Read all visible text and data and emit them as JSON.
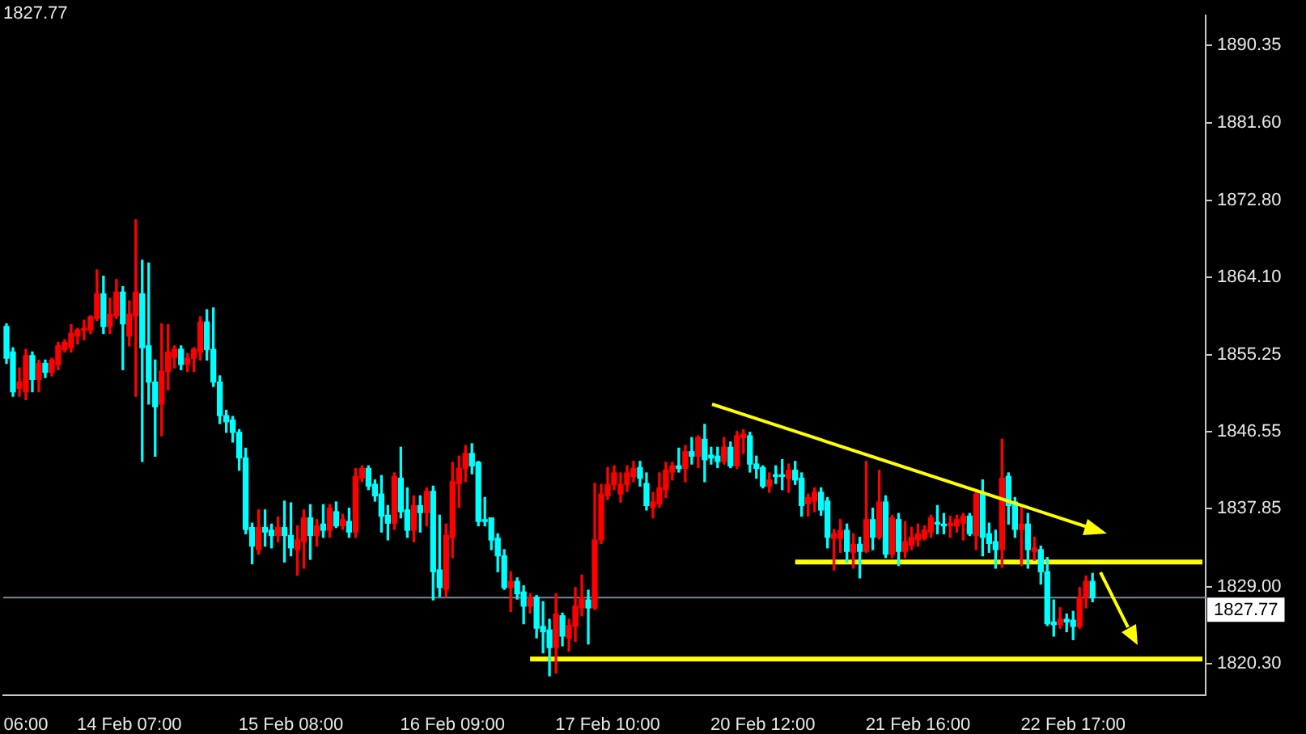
{
  "chart_data": {
    "type": "candlestick",
    "categories": [
      null,
      null,
      null,
      "06:00",
      null,
      null,
      null,
      null,
      null,
      null,
      null,
      null,
      null,
      null,
      null,
      null,
      null,
      null,
      null,
      "14 Feb 07:00",
      null,
      null,
      null,
      null,
      null,
      null,
      null,
      null,
      null,
      null,
      null,
      null,
      null,
      null,
      null,
      null,
      null,
      null,
      null,
      null,
      null,
      null,
      null,
      null,
      "15 Feb 08:00",
      null,
      null,
      null,
      null,
      null,
      null,
      null,
      null,
      null,
      null,
      null,
      null,
      null,
      null,
      null,
      null,
      null,
      null,
      null,
      null,
      null,
      null,
      null,
      null,
      "16 Feb 09:00",
      null,
      null,
      null,
      null,
      null,
      null,
      null,
      null,
      null,
      null,
      null,
      null,
      null,
      null,
      null,
      null,
      null,
      null,
      null,
      null,
      null,
      null,
      null,
      "17 Feb 10:00",
      null,
      null,
      null,
      null,
      null,
      null,
      null,
      null,
      null,
      null,
      null,
      null,
      null,
      null,
      null,
      null,
      null,
      null,
      null,
      null,
      null,
      null,
      null,
      "20 Feb 12:00",
      null,
      null,
      null,
      null,
      null,
      null,
      null,
      null,
      null,
      null,
      null,
      null,
      null,
      null,
      null,
      null,
      null,
      null,
      null,
      null,
      null,
      null,
      null,
      "21 Feb 16:00",
      null,
      null,
      null,
      null,
      null,
      null,
      null,
      null,
      null,
      null,
      null,
      null,
      null,
      null,
      null,
      null,
      null,
      null,
      null,
      null,
      null,
      null,
      null,
      "22 Feb 17:00",
      null,
      null,
      null,
      null,
      null,
      null,
      null,
      null,
      null,
      null,
      null,
      null,
      null,
      null,
      null,
      null,
      null,
      null,
      null,
      null
    ],
    "ohlc": [
      [
        1858.5,
        1858.8,
        1854.3,
        1854.9
      ],
      [
        1855.6,
        1856.1,
        1850.6,
        1851.1
      ],
      [
        1851.5,
        1853.8,
        1850.6,
        1852.2
      ],
      [
        1851.1,
        1855.9,
        1850.2,
        1855.2
      ],
      [
        1855.2,
        1855.6,
        1851.1,
        1852.5
      ],
      [
        1852.5,
        1854.7,
        1851.1,
        1854.3
      ],
      [
        1854.3,
        1854.7,
        1852.7,
        1853.3
      ],
      [
        1853.3,
        1854.9,
        1852.9,
        1854.7
      ],
      [
        1854.2,
        1856.7,
        1853.6,
        1856.3
      ],
      [
        1855.9,
        1857.0,
        1855.6,
        1856.7
      ],
      [
        1856.1,
        1858.7,
        1855.6,
        1857.7
      ],
      [
        1857.4,
        1858.3,
        1856.5,
        1858.1
      ],
      [
        1858.1,
        1859.2,
        1857.0,
        1858.3
      ],
      [
        1858.1,
        1859.7,
        1857.7,
        1859.6
      ],
      [
        1859.4,
        1864.9,
        1859.2,
        1862.2
      ],
      [
        1862.2,
        1864.2,
        1857.7,
        1858.5
      ],
      [
        1858.5,
        1861.7,
        1857.7,
        1859.9
      ],
      [
        1859.7,
        1863.8,
        1859.4,
        1862.4
      ],
      [
        1862.4,
        1863.0,
        1853.6,
        1858.8
      ],
      [
        1857.4,
        1861.4,
        1856.3,
        1859.9
      ],
      [
        1859.7,
        1870.6,
        1850.6,
        1862.4
      ],
      [
        1862.2,
        1866.0,
        1843.2,
        1856.1
      ],
      [
        1856.3,
        1865.7,
        1849.7,
        1852.2
      ],
      [
        1852.2,
        1854.7,
        1843.8,
        1849.4
      ],
      [
        1849.7,
        1858.8,
        1846.1,
        1853.4
      ],
      [
        1853.4,
        1858.7,
        1851.3,
        1855.6
      ],
      [
        1855.0,
        1856.3,
        1853.8,
        1855.9
      ],
      [
        1855.9,
        1856.3,
        1853.6,
        1854.2
      ],
      [
        1854.2,
        1855.4,
        1853.4,
        1854.9
      ],
      [
        1854.9,
        1856.1,
        1853.4,
        1855.9
      ],
      [
        1855.6,
        1859.6,
        1854.7,
        1859.0
      ],
      [
        1859.0,
        1860.4,
        1854.7,
        1855.9
      ],
      [
        1855.9,
        1860.6,
        1851.7,
        1852.2
      ],
      [
        1852.2,
        1852.9,
        1847.5,
        1848.4
      ],
      [
        1848.4,
        1849.0,
        1846.5,
        1847.7
      ],
      [
        1847.9,
        1848.3,
        1845.4,
        1846.5
      ],
      [
        1846.5,
        1846.8,
        1842.2,
        1843.6
      ],
      [
        1843.6,
        1844.7,
        1835.0,
        1835.5
      ],
      [
        1835.7,
        1836.2,
        1831.6,
        1833.6
      ],
      [
        1833.2,
        1837.7,
        1832.7,
        1835.7
      ],
      [
        1835.7,
        1837.7,
        1833.6,
        1835.2
      ],
      [
        1835.4,
        1836.1,
        1833.4,
        1834.8
      ],
      [
        1834.8,
        1836.9,
        1834.1,
        1835.7
      ],
      [
        1835.7,
        1838.7,
        1831.8,
        1834.8
      ],
      [
        1834.8,
        1838.5,
        1832.5,
        1833.4
      ],
      [
        1833.2,
        1835.9,
        1830.3,
        1834.3
      ],
      [
        1834.1,
        1837.7,
        1831.1,
        1836.8
      ],
      [
        1836.8,
        1838.3,
        1832.1,
        1834.8
      ],
      [
        1834.8,
        1836.6,
        1833.6,
        1835.9
      ],
      [
        1836.1,
        1838.3,
        1834.6,
        1835.4
      ],
      [
        1835.4,
        1838.3,
        1834.6,
        1837.9
      ],
      [
        1837.5,
        1838.6,
        1835.7,
        1835.9
      ],
      [
        1835.9,
        1837.2,
        1835.5,
        1836.6
      ],
      [
        1836.4,
        1837.9,
        1834.6,
        1835.2
      ],
      [
        1835.2,
        1842.4,
        1834.6,
        1841.5
      ],
      [
        1841.3,
        1842.7,
        1840.9,
        1842.4
      ],
      [
        1842.4,
        1842.7,
        1840.0,
        1840.4
      ],
      [
        1840.6,
        1841.1,
        1838.7,
        1839.3
      ],
      [
        1839.5,
        1841.6,
        1835.2,
        1837.0
      ],
      [
        1837.1,
        1838.2,
        1834.3,
        1836.2
      ],
      [
        1836.2,
        1841.9,
        1835.5,
        1841.5
      ],
      [
        1841.3,
        1844.8,
        1836.8,
        1837.5
      ],
      [
        1837.7,
        1840.2,
        1834.6,
        1835.4
      ],
      [
        1835.4,
        1839.3,
        1834.1,
        1838.2
      ],
      [
        1838.2,
        1839.3,
        1835.2,
        1837.4
      ],
      [
        1837.4,
        1840.2,
        1835.9,
        1839.8
      ],
      [
        1839.8,
        1840.4,
        1827.5,
        1830.7
      ],
      [
        1830.9,
        1837.1,
        1827.9,
        1828.9
      ],
      [
        1828.7,
        1836.1,
        1827.9,
        1834.8
      ],
      [
        1834.6,
        1843.1,
        1832.3,
        1840.9
      ],
      [
        1840.7,
        1843.8,
        1838.0,
        1842.4
      ],
      [
        1842.4,
        1845.0,
        1840.9,
        1844.1
      ],
      [
        1844.1,
        1845.2,
        1841.8,
        1842.7
      ],
      [
        1843.1,
        1843.2,
        1835.9,
        1836.4
      ],
      [
        1836.6,
        1839.1,
        1835.9,
        1836.4
      ],
      [
        1836.8,
        1836.8,
        1833.2,
        1834.3
      ],
      [
        1834.5,
        1835.0,
        1830.7,
        1832.5
      ],
      [
        1832.5,
        1833.2,
        1828.7,
        1828.9
      ],
      [
        1828.9,
        1830.7,
        1826.2,
        1829.6
      ],
      [
        1829.6,
        1830.0,
        1827.6,
        1828.2
      ],
      [
        1828.4,
        1829.1,
        1824.8,
        1826.8
      ],
      [
        1826.8,
        1828.2,
        1826.0,
        1827.8
      ],
      [
        1827.8,
        1828.0,
        1823.2,
        1824.3
      ],
      [
        1824.5,
        1827.3,
        1821.5,
        1823.9
      ],
      [
        1824.1,
        1825.3,
        1818.9,
        1822.1
      ],
      [
        1822.1,
        1828.2,
        1819.2,
        1825.9
      ],
      [
        1825.7,
        1826.0,
        1822.3,
        1823.4
      ],
      [
        1823.2,
        1825.3,
        1821.7,
        1824.6
      ],
      [
        1824.5,
        1828.9,
        1822.8,
        1826.8
      ],
      [
        1826.6,
        1830.3,
        1825.7,
        1827.8
      ],
      [
        1827.5,
        1828.6,
        1822.5,
        1826.6
      ],
      [
        1826.6,
        1840.7,
        1826.4,
        1834.3
      ],
      [
        1834.3,
        1840.6,
        1833.9,
        1839.5
      ],
      [
        1839.3,
        1842.5,
        1838.9,
        1840.6
      ],
      [
        1840.6,
        1842.7,
        1840.0,
        1841.9
      ],
      [
        1839.5,
        1841.9,
        1838.6,
        1840.6
      ],
      [
        1840.6,
        1842.7,
        1839.8,
        1841.9
      ],
      [
        1841.5,
        1843.2,
        1840.9,
        1842.4
      ],
      [
        1842.5,
        1843.2,
        1840.4,
        1841.3
      ],
      [
        1840.7,
        1841.9,
        1837.7,
        1838.2
      ],
      [
        1838.0,
        1839.7,
        1836.8,
        1838.6
      ],
      [
        1838.4,
        1841.9,
        1838.0,
        1840.2
      ],
      [
        1840.0,
        1843.1,
        1839.1,
        1842.2
      ],
      [
        1842.0,
        1843.1,
        1841.1,
        1842.7
      ],
      [
        1842.7,
        1844.7,
        1842.0,
        1842.4
      ],
      [
        1842.4,
        1845.0,
        1840.9,
        1844.3
      ],
      [
        1844.3,
        1845.9,
        1842.9,
        1843.8
      ],
      [
        1843.8,
        1846.1,
        1842.5,
        1845.9
      ],
      [
        1845.7,
        1847.4,
        1840.9,
        1843.4
      ],
      [
        1843.9,
        1844.8,
        1842.9,
        1843.6
      ],
      [
        1843.8,
        1844.8,
        1842.5,
        1843.2
      ],
      [
        1843.2,
        1845.9,
        1842.9,
        1844.8
      ],
      [
        1844.8,
        1845.4,
        1842.5,
        1842.7
      ],
      [
        1842.7,
        1846.6,
        1842.4,
        1846.1
      ],
      [
        1845.9,
        1846.8,
        1844.1,
        1846.3
      ],
      [
        1846.1,
        1846.5,
        1842.0,
        1842.9
      ],
      [
        1842.9,
        1843.8,
        1841.3,
        1842.4
      ],
      [
        1842.5,
        1842.7,
        1840.2,
        1840.4
      ],
      [
        1840.4,
        1841.9,
        1839.7,
        1841.1
      ],
      [
        1841.6,
        1842.7,
        1840.7,
        1841.5
      ],
      [
        1841.6,
        1843.4,
        1840.0,
        1841.5
      ],
      [
        1841.3,
        1842.9,
        1839.7,
        1842.2
      ],
      [
        1842.2,
        1843.2,
        1840.6,
        1841.1
      ],
      [
        1841.3,
        1841.9,
        1837.0,
        1838.2
      ],
      [
        1838.4,
        1839.5,
        1837.0,
        1839.1
      ],
      [
        1838.7,
        1840.2,
        1837.5,
        1839.7
      ],
      [
        1839.7,
        1840.2,
        1837.1,
        1837.7
      ],
      [
        1838.7,
        1839.1,
        1833.4,
        1834.6
      ],
      [
        1834.5,
        1835.5,
        1830.9,
        1835.0
      ],
      [
        1834.5,
        1836.6,
        1832.9,
        1835.4
      ],
      [
        1835.4,
        1836.1,
        1831.8,
        1833.0
      ],
      [
        1832.9,
        1835.0,
        1831.1,
        1833.8
      ],
      [
        1833.8,
        1834.6,
        1830.0,
        1833.0
      ],
      [
        1833.0,
        1843.2,
        1832.9,
        1836.6
      ],
      [
        1836.6,
        1837.9,
        1833.2,
        1834.6
      ],
      [
        1834.6,
        1842.2,
        1834.4,
        1838.6
      ],
      [
        1838.6,
        1839.3,
        1832.3,
        1832.7
      ],
      [
        1832.7,
        1837.1,
        1832.3,
        1836.8
      ],
      [
        1836.6,
        1837.3,
        1831.4,
        1833.0
      ],
      [
        1833.0,
        1836.4,
        1832.3,
        1834.1
      ],
      [
        1833.7,
        1835.7,
        1833.2,
        1834.6
      ],
      [
        1834.3,
        1836.1,
        1833.6,
        1835.0
      ],
      [
        1834.5,
        1835.9,
        1834.3,
        1835.4
      ],
      [
        1835.2,
        1837.1,
        1834.6,
        1836.8
      ],
      [
        1836.2,
        1838.2,
        1835.0,
        1836.1
      ],
      [
        1836.1,
        1837.3,
        1835.0,
        1835.9
      ],
      [
        1835.9,
        1837.0,
        1834.6,
        1836.2
      ],
      [
        1835.9,
        1837.1,
        1835.2,
        1836.6
      ],
      [
        1836.2,
        1837.3,
        1834.3,
        1837.0
      ],
      [
        1837.0,
        1837.3,
        1834.8,
        1835.0
      ],
      [
        1834.8,
        1839.7,
        1833.2,
        1839.5
      ],
      [
        1839.7,
        1841.1,
        1832.5,
        1834.6
      ],
      [
        1835.0,
        1836.2,
        1832.9,
        1833.9
      ],
      [
        1834.1,
        1835.4,
        1831.1,
        1833.2
      ],
      [
        1833.2,
        1845.7,
        1831.2,
        1841.3
      ],
      [
        1841.5,
        1841.9,
        1836.1,
        1838.2
      ],
      [
        1838.6,
        1839.1,
        1834.6,
        1835.5
      ],
      [
        1835.5,
        1838.2,
        1831.4,
        1836.1
      ],
      [
        1836.1,
        1837.3,
        1831.1,
        1833.2
      ],
      [
        1833.0,
        1834.6,
        1832.0,
        1833.4
      ],
      [
        1833.2,
        1833.6,
        1829.3,
        1830.7
      ],
      [
        1830.7,
        1832.3,
        1824.6,
        1824.8
      ],
      [
        1825.0,
        1827.5,
        1823.4,
        1824.7
      ],
      [
        1824.7,
        1826.6,
        1824.3,
        1825.3
      ],
      [
        1825.3,
        1825.9,
        1823.9,
        1825.0
      ],
      [
        1825.2,
        1826.2,
        1823.0,
        1824.5
      ],
      [
        1824.5,
        1828.9,
        1824.3,
        1827.8
      ],
      [
        1827.8,
        1830.2,
        1826.6,
        1829.6
      ],
      [
        1829.6,
        1830.5,
        1827.3,
        1827.77
      ],
      null,
      null,
      null,
      null,
      null,
      null,
      null,
      null,
      null,
      null,
      null,
      null,
      null,
      null,
      null,
      null,
      null
    ],
    "colors": [
      "#00ffff",
      "#00ffff",
      "#ff0000",
      "#ff0000",
      "#00ffff",
      "#ff0000",
      "#00ffff",
      "#ff0000",
      "#ff0000",
      "#ff0000",
      "#ff0000",
      "#ff0000",
      "#ff0000",
      "#ff0000",
      "#ff0000",
      "#00ffff",
      "#ff0000",
      "#ff0000",
      "#00ffff",
      "#ff0000",
      "#ff0000",
      "#00ffff",
      "#00ffff",
      "#00ffff",
      "#ff0000",
      "#ff0000",
      "#ff0000",
      "#00ffff",
      "#ff0000",
      "#ff0000",
      "#ff0000",
      "#00ffff",
      "#00ffff",
      "#00ffff",
      "#00ffff",
      "#00ffff",
      "#00ffff",
      "#00ffff",
      "#00ffff",
      "#ff0000",
      "#00ffff",
      "#00ffff",
      "#ff0000",
      "#00ffff",
      "#00ffff",
      "#ff0000",
      "#ff0000",
      "#00ffff",
      "#ff0000",
      "#00ffff",
      "#ff0000",
      "#00ffff",
      "#ff0000",
      "#00ffff",
      "#ff0000",
      "#ff0000",
      "#00ffff",
      "#00ffff",
      "#00ffff",
      "#00ffff",
      "#ff0000",
      "#00ffff",
      "#00ffff",
      "#ff0000",
      "#00ffff",
      "#ff0000",
      "#00ffff",
      "#00ffff",
      "#ff0000",
      "#ff0000",
      "#ff0000",
      "#ff0000",
      "#00ffff",
      "#00ffff",
      "#00ffff",
      "#00ffff",
      "#00ffff",
      "#00ffff",
      "#ff0000",
      "#00ffff",
      "#00ffff",
      "#ff0000",
      "#00ffff",
      "#00ffff",
      "#00ffff",
      "#ff0000",
      "#00ffff",
      "#ff0000",
      "#ff0000",
      "#ff0000",
      "#00ffff",
      "#ff0000",
      "#ff0000",
      "#ff0000",
      "#ff0000",
      "#ff0000",
      "#ff0000",
      "#ff0000",
      "#00ffff",
      "#00ffff",
      "#ff0000",
      "#ff0000",
      "#ff0000",
      "#ff0000",
      "#00ffff",
      "#ff0000",
      "#00ffff",
      "#ff0000",
      "#00ffff",
      "#00ffff",
      "#00ffff",
      "#ff0000",
      "#00ffff",
      "#ff0000",
      "#ff0000",
      "#00ffff",
      "#00ffff",
      "#00ffff",
      "#ff0000",
      "#00ffff",
      "#00ffff",
      "#ff0000",
      "#00ffff",
      "#00ffff",
      "#ff0000",
      "#ff0000",
      "#00ffff",
      "#00ffff",
      "#ff0000",
      "#ff0000",
      "#00ffff",
      "#ff0000",
      "#00ffff",
      "#ff0000",
      "#00ffff",
      "#ff0000",
      "#00ffff",
      "#ff0000",
      "#00ffff",
      "#ff0000",
      "#ff0000",
      "#ff0000",
      "#ff0000",
      "#ff0000",
      "#00ffff",
      "#00ffff",
      "#ff0000",
      "#ff0000",
      "#ff0000",
      "#00ffff",
      "#ff0000",
      "#00ffff",
      "#00ffff",
      "#00ffff",
      "#ff0000",
      "#00ffff",
      "#00ffff",
      "#ff0000",
      "#00ffff",
      "#ff0000",
      "#00ffff",
      "#00ffff",
      "#00ffff",
      "#ff0000",
      "#00ffff",
      "#00ffff",
      "#ff0000",
      "#ff0000",
      "#00ffff",
      null,
      null,
      null,
      null,
      null,
      null,
      null,
      null,
      null,
      null,
      null,
      null,
      null,
      null,
      null,
      null,
      null
    ],
    "series": [
      {
        "type": "line",
        "color": "#ffff00",
        "values": [
          null,
          null,
          null,
          null,
          null,
          null,
          null,
          null,
          null,
          null,
          null,
          null,
          null,
          null,
          null,
          null,
          null,
          null,
          null,
          null,
          null,
          null,
          null,
          null,
          null,
          null,
          null,
          null,
          null,
          null,
          null,
          null,
          null,
          null,
          null,
          null,
          null,
          null,
          null,
          null,
          null,
          null,
          null,
          null,
          null,
          null,
          null,
          null,
          null,
          null,
          null,
          null,
          null,
          null,
          null,
          null,
          null,
          null,
          null,
          null,
          null,
          null,
          null,
          null,
          null,
          null,
          null,
          null,
          null,
          null,
          null,
          null,
          null,
          null,
          null,
          null,
          null,
          null,
          null,
          null,
          null,
          null,
          null,
          null,
          null,
          null,
          null,
          null,
          null,
          null,
          null,
          null,
          null,
          null,
          null,
          null,
          null,
          null,
          null,
          null,
          null,
          null,
          null,
          null,
          null,
          null,
          null,
          null,
          null,
          null,
          null,
          null,
          null,
          null,
          null,
          null,
          null,
          null,
          null,
          null,
          null,
          null,
          1831.8,
          null,
          null,
          null,
          null,
          null,
          null,
          null,
          null,
          null,
          null,
          null,
          null,
          null,
          null,
          null,
          null,
          null,
          null,
          null,
          null,
          null,
          null,
          null,
          null,
          null,
          null,
          null,
          null,
          null,
          null,
          null,
          null,
          null,
          null,
          null,
          null,
          null,
          null,
          null,
          null,
          null,
          null,
          null,
          null,
          null,
          null,
          null,
          null,
          null,
          null,
          null,
          null,
          null,
          null,
          null,
          null,
          null,
          null,
          null,
          null,
          null,
          null,
          1831.8
        ]
      },
      {
        "type": "line",
        "color": "#ffff00",
        "values": [
          null,
          null,
          null,
          null,
          null,
          null,
          null,
          null,
          null,
          null,
          null,
          null,
          null,
          null,
          null,
          null,
          null,
          null,
          null,
          null,
          null,
          null,
          null,
          null,
          null,
          null,
          null,
          null,
          null,
          null,
          null,
          null,
          null,
          null,
          null,
          null,
          null,
          null,
          null,
          null,
          null,
          null,
          null,
          null,
          null,
          null,
          null,
          null,
          null,
          null,
          null,
          null,
          null,
          null,
          null,
          null,
          null,
          null,
          null,
          null,
          null,
          null,
          null,
          null,
          null,
          null,
          null,
          null,
          null,
          null,
          null,
          null,
          null,
          null,
          null,
          null,
          null,
          null,
          null,
          null,
          null,
          1820.8,
          null,
          null,
          null,
          null,
          null,
          null,
          null,
          null,
          null,
          null,
          null,
          null,
          null,
          null,
          null,
          null,
          null,
          null,
          null,
          null,
          null,
          null,
          null,
          null,
          null,
          null,
          null,
          null,
          null,
          null,
          null,
          null,
          null,
          null,
          null,
          null,
          null,
          null,
          null,
          null,
          null,
          null,
          null,
          null,
          null,
          null,
          null,
          null,
          null,
          null,
          null,
          null,
          null,
          null,
          null,
          null,
          null,
          null,
          null,
          null,
          null,
          null,
          null,
          null,
          null,
          null,
          null,
          null,
          null,
          null,
          null,
          null,
          null,
          null,
          null,
          null,
          null,
          null,
          null,
          null,
          null,
          null,
          null,
          null,
          null,
          null,
          null,
          null,
          null,
          null,
          null,
          null,
          null,
          null,
          null,
          null,
          null,
          null,
          null,
          null,
          null,
          null,
          null,
          1820.8
        ]
      }
    ],
    "ylim": [
      1816.7,
      1893.75
    ],
    "yticks": [
      {
        "value": 1820.3,
        "label": "1820.30"
      },
      {
        "value": 1829,
        "label": "1829.00"
      },
      1837.85,
      1846.55,
      {
        "value": 1855.25,
        "label": "1855.25"
      },
      {
        "value": 1864.1,
        "label": "1864.10"
      },
      {
        "value": 1872.8,
        "label": "1872.80"
      },
      {
        "value": 1881.6,
        "label": "1881.60"
      },
      1890.35
    ],
    "ref_lines": [
      {
        "axis": "y",
        "value": 1827.77,
        "label": "1827.77",
        "color": "#778899"
      }
    ],
    "annotations": [
      "1827.77"
    ]
  }
}
